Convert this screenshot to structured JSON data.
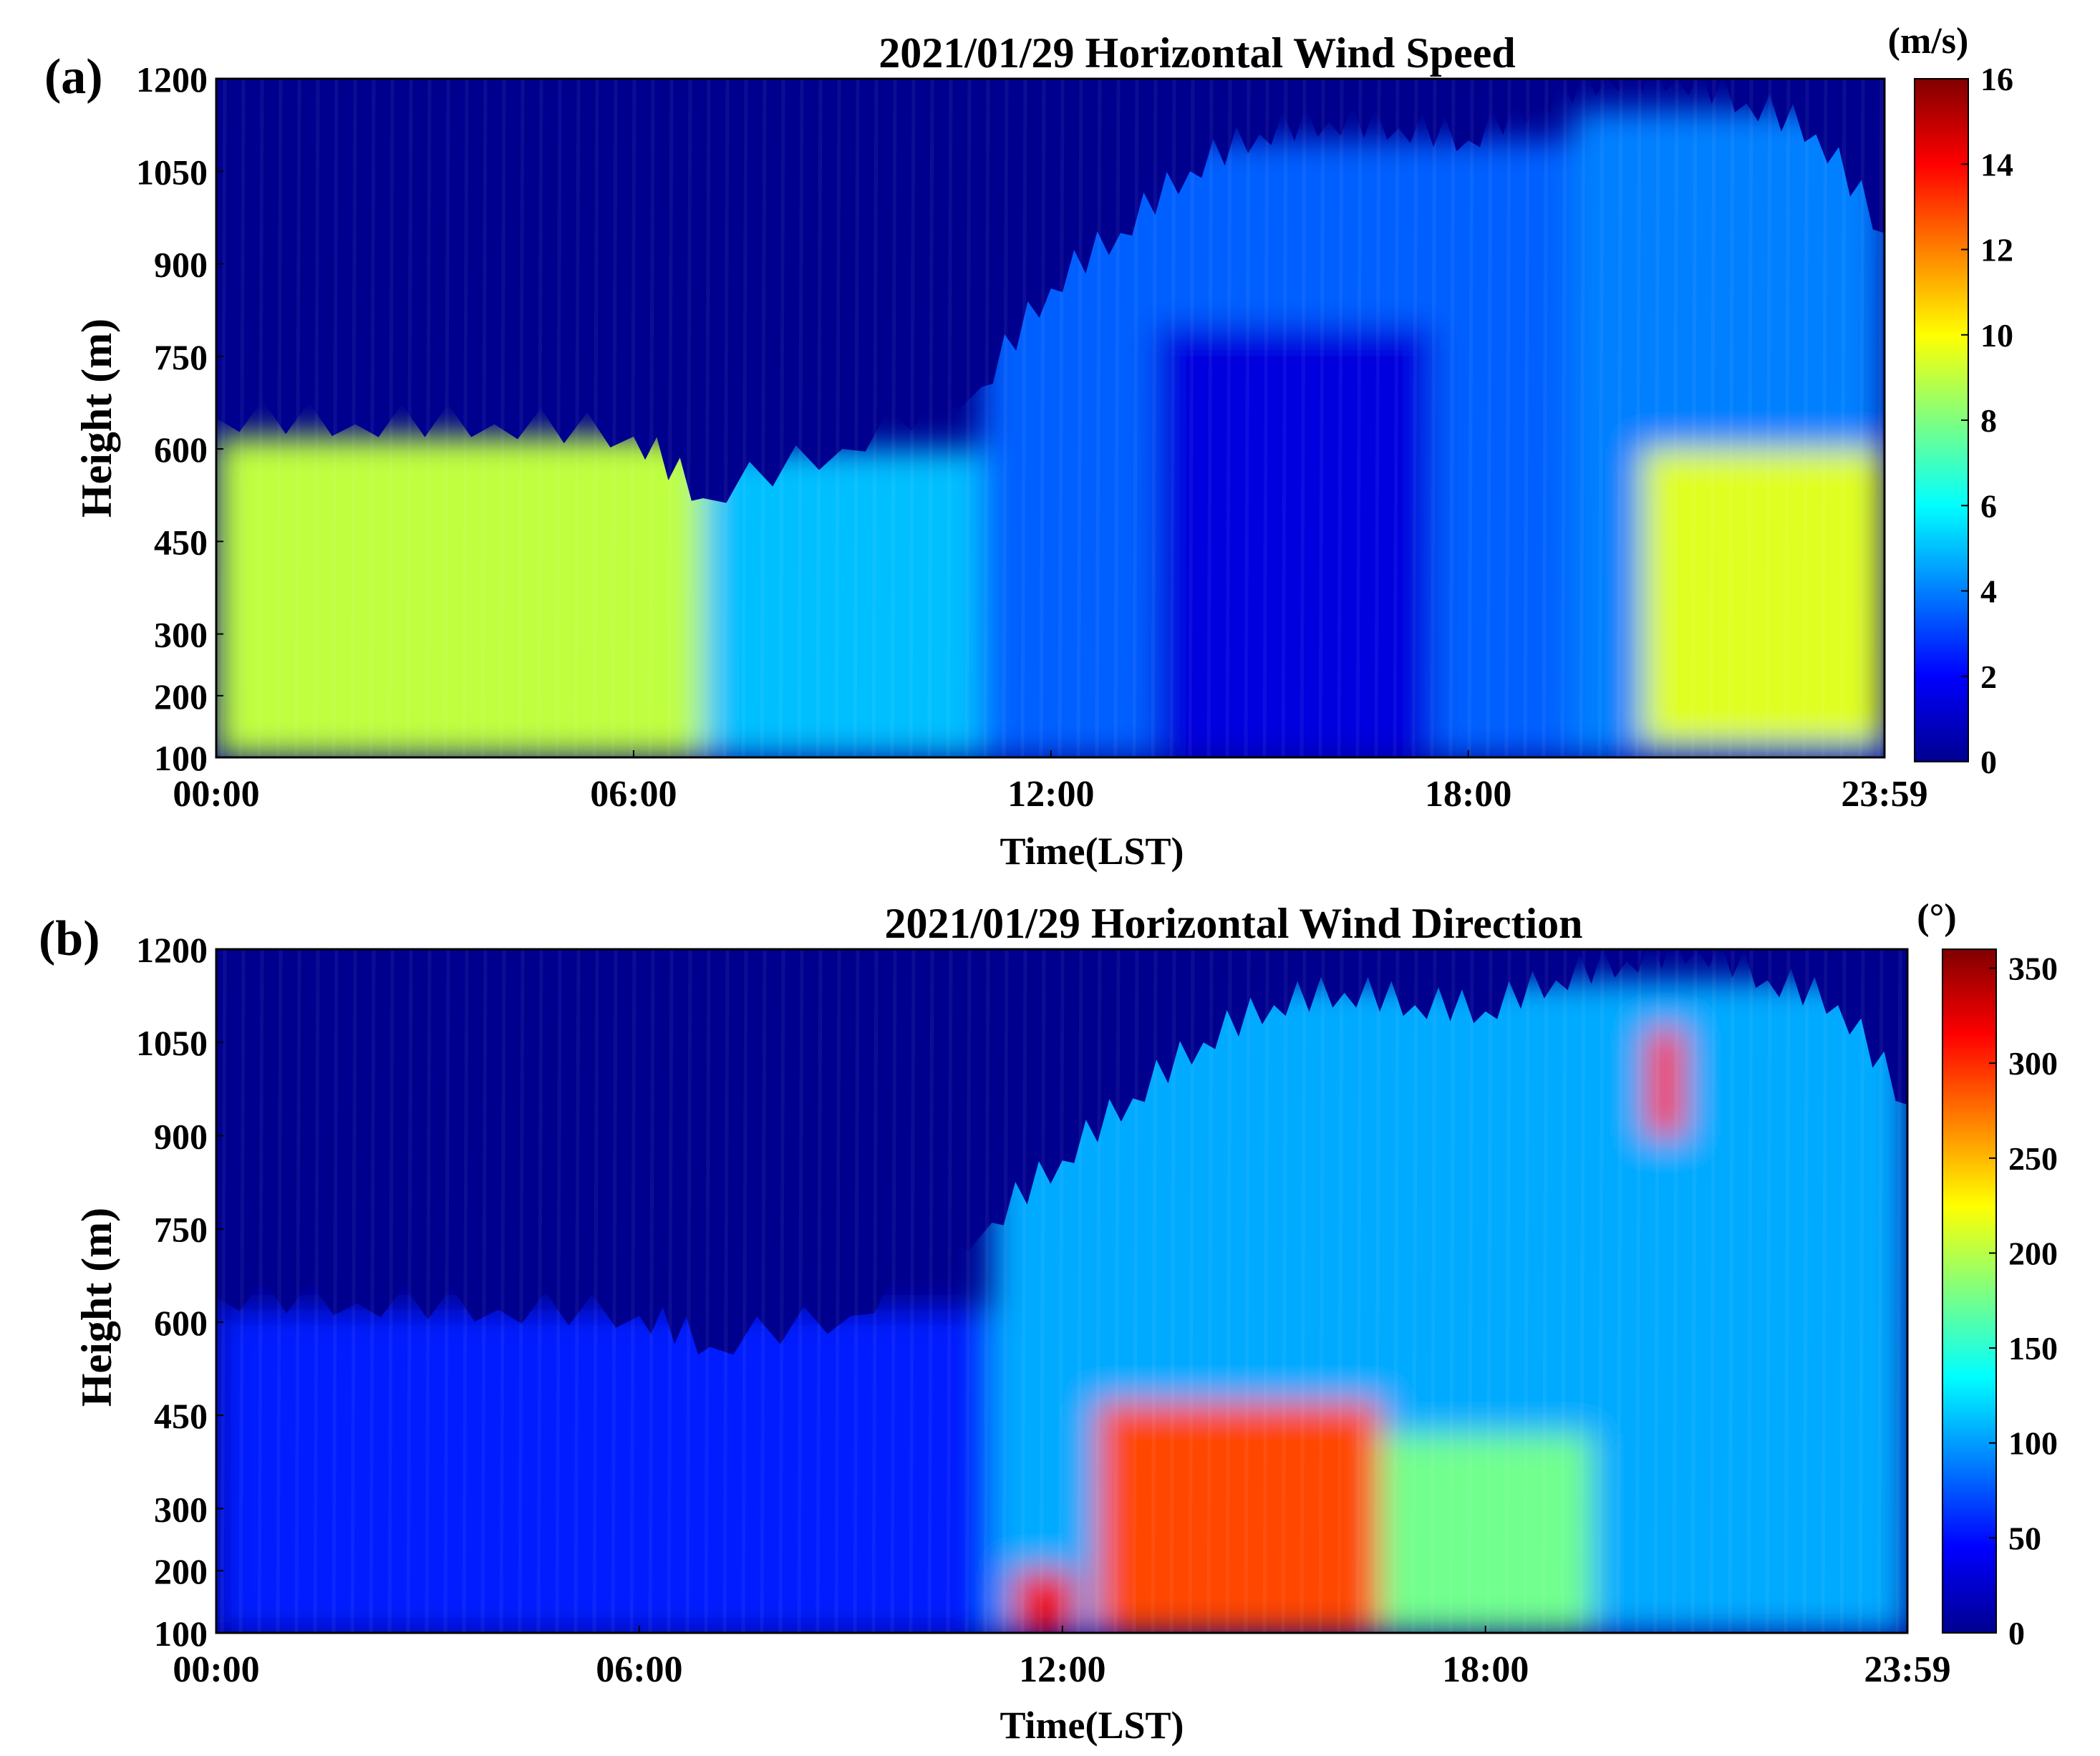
{
  "chart_data": [
    {
      "type": "heatmap",
      "panel_label": "(a)",
      "title": "2021/01/29 Horizontal Wind Speed",
      "xlabel": "Time(LST)",
      "ylabel": "Height (m)",
      "x_ticks": [
        "00:00",
        "06:00",
        "12:00",
        "18:00",
        "23:59"
      ],
      "y_ticks": [
        "100",
        "200",
        "300",
        "450",
        "600",
        "750",
        "900",
        "1050",
        "1200"
      ],
      "xlim": [
        "00:00",
        "23:59"
      ],
      "ylim": [
        100,
        1200
      ],
      "colorbar": {
        "unit": "(m/s)",
        "ticks": [
          "0",
          "2",
          "4",
          "6",
          "8",
          "10",
          "12",
          "14",
          "16"
        ],
        "range": [
          0,
          16
        ],
        "colormap": "jet"
      },
      "x_hours": [
        0,
        2,
        4,
        6,
        7,
        9,
        11,
        12,
        13,
        14,
        15,
        16,
        17,
        18,
        19,
        20,
        21,
        22,
        23,
        23.98
      ],
      "top_height_m": [
        650,
        640,
        640,
        620,
        520,
        600,
        700,
        860,
        950,
        1050,
        1110,
        1130,
        1120,
        1100,
        1160,
        1200,
        1200,
        1160,
        1110,
        950
      ],
      "regions": [
        {
          "x_range": [
            0,
            7
          ],
          "y_range": [
            100,
            620
          ],
          "value": 9
        },
        {
          "x_range": [
            7,
            11
          ],
          "y_range": [
            100,
            600
          ],
          "value": 5
        },
        {
          "x_range": [
            11,
            20
          ],
          "y_range": [
            100,
            1100
          ],
          "value": 3.5
        },
        {
          "x_range": [
            13.5,
            17.5
          ],
          "y_range": [
            100,
            800
          ],
          "value": 1.5
        },
        {
          "x_range": [
            19.5,
            23.98
          ],
          "y_range": [
            100,
            1150
          ],
          "value": 4
        },
        {
          "x_range": [
            20.5,
            23.98
          ],
          "y_range": [
            120,
            600
          ],
          "value": 9.5
        }
      ]
    },
    {
      "type": "heatmap",
      "panel_label": "(b)",
      "title": "2021/01/29 Horizontal Wind Direction",
      "xlabel": "Time(LST)",
      "ylabel": "Height (m)",
      "x_ticks": [
        "00:00",
        "06:00",
        "12:00",
        "18:00",
        "23:59"
      ],
      "y_ticks": [
        "100",
        "200",
        "300",
        "450",
        "600",
        "750",
        "900",
        "1050",
        "1200"
      ],
      "xlim": [
        "00:00",
        "23:59"
      ],
      "ylim": [
        100,
        1200
      ],
      "colorbar": {
        "unit": "(°)",
        "ticks": [
          "0",
          "50",
          "100",
          "150",
          "200",
          "250",
          "300",
          "350"
        ],
        "range": [
          0,
          360
        ],
        "colormap": "jet"
      },
      "x_hours": [
        0,
        2,
        4,
        6,
        7,
        9,
        11,
        12,
        13,
        14,
        15,
        16,
        17,
        18,
        19,
        20,
        21,
        22,
        23,
        23.98
      ],
      "top_height_m": [
        640,
        630,
        620,
        610,
        560,
        610,
        760,
        860,
        960,
        1050,
        1110,
        1130,
        1110,
        1100,
        1150,
        1180,
        1200,
        1150,
        1110,
        950
      ],
      "regions": [
        {
          "x_range": [
            0,
            11
          ],
          "y_range": [
            100,
            620
          ],
          "value": 55
        },
        {
          "x_range": [
            11,
            23.98
          ],
          "y_range": [
            100,
            1150
          ],
          "value": 105
        },
        {
          "x_range": [
            12.5,
            16.5
          ],
          "y_range": [
            100,
            470
          ],
          "value": 290
        },
        {
          "x_range": [
            11.3,
            12.2
          ],
          "y_range": [
            100,
            200
          ],
          "value": 320
        },
        {
          "x_range": [
            16.5,
            19.5
          ],
          "y_range": [
            100,
            420
          ],
          "value": 175
        },
        {
          "x_range": [
            20.3,
            20.8
          ],
          "y_range": [
            900,
            1070
          ],
          "value": 310
        }
      ]
    }
  ]
}
